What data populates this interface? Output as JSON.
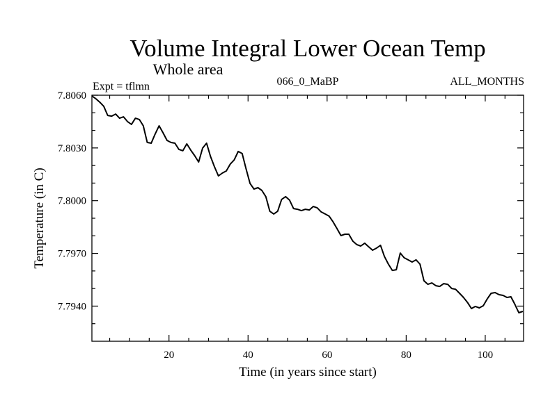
{
  "chart_data": {
    "type": "line",
    "title": "Volume Integral Lower Ocean Temp",
    "subtitle": "Whole area",
    "annotations": {
      "left": "Expt = tflmn",
      "center": "066_0_MaBP",
      "right": "ALL_MONTHS"
    },
    "xlabel": "Time (in years since start)",
    "ylabel": "Temperature (in C)",
    "xlim": [
      0.5,
      109.7
    ],
    "ylim": [
      7.792,
      7.806
    ],
    "x_major_ticks": [
      20,
      40,
      60,
      80,
      100
    ],
    "x_tick_labels": [
      "20",
      "40",
      "60",
      "80",
      "100"
    ],
    "x_minor_step": 5,
    "y_major_ticks": [
      7.794,
      7.797,
      7.8,
      7.803,
      7.806
    ],
    "y_tick_labels": [
      "7.7940",
      "7.7970",
      "7.8000",
      "7.8030",
      "7.8060"
    ],
    "y_minor_step": 0.001,
    "grid": false,
    "legend": "none",
    "line_color": "#000000",
    "series": [
      {
        "name": "Volume Integral Lower Ocean Temp",
        "x_start": 0.5,
        "x_step": 1,
        "values": [
          7.80596,
          7.8058,
          7.8056,
          7.80537,
          7.80485,
          7.80481,
          7.80493,
          7.80469,
          7.80477,
          7.8045,
          7.80434,
          7.80469,
          7.80462,
          7.80426,
          7.80331,
          7.80327,
          7.80379,
          7.80426,
          7.80386,
          7.80343,
          7.80331,
          7.80327,
          7.80292,
          7.80284,
          7.80323,
          7.80288,
          7.80256,
          7.8022,
          7.80299,
          7.80327,
          7.80252,
          7.80193,
          7.80141,
          7.80157,
          7.80169,
          7.80208,
          7.80232,
          7.8028,
          7.80268,
          7.80181,
          7.80098,
          7.80066,
          7.80074,
          7.80058,
          7.80023,
          7.7994,
          7.79924,
          7.7994,
          7.80007,
          7.80023,
          7.80003,
          7.79955,
          7.79951,
          7.79943,
          7.79951,
          7.79947,
          7.79967,
          7.79959,
          7.79936,
          7.79924,
          7.79912,
          7.7988,
          7.79841,
          7.79801,
          7.79809,
          7.79809,
          7.7977,
          7.7975,
          7.79742,
          7.79758,
          7.79738,
          7.79718,
          7.7973,
          7.79746,
          7.79683,
          7.79639,
          7.79603,
          7.79607,
          7.79702,
          7.79675,
          7.79663,
          7.79651,
          7.79663,
          7.79639,
          7.79544,
          7.79524,
          7.79532,
          7.79516,
          7.79512,
          7.79528,
          7.79524,
          7.795,
          7.79496,
          7.79473,
          7.79449,
          7.79421,
          7.79386,
          7.79398,
          7.7939,
          7.79402,
          7.79441,
          7.79473,
          7.79477,
          7.79465,
          7.79461,
          7.79449,
          7.79453,
          7.7941,
          7.79362,
          7.7937
        ]
      }
    ]
  }
}
